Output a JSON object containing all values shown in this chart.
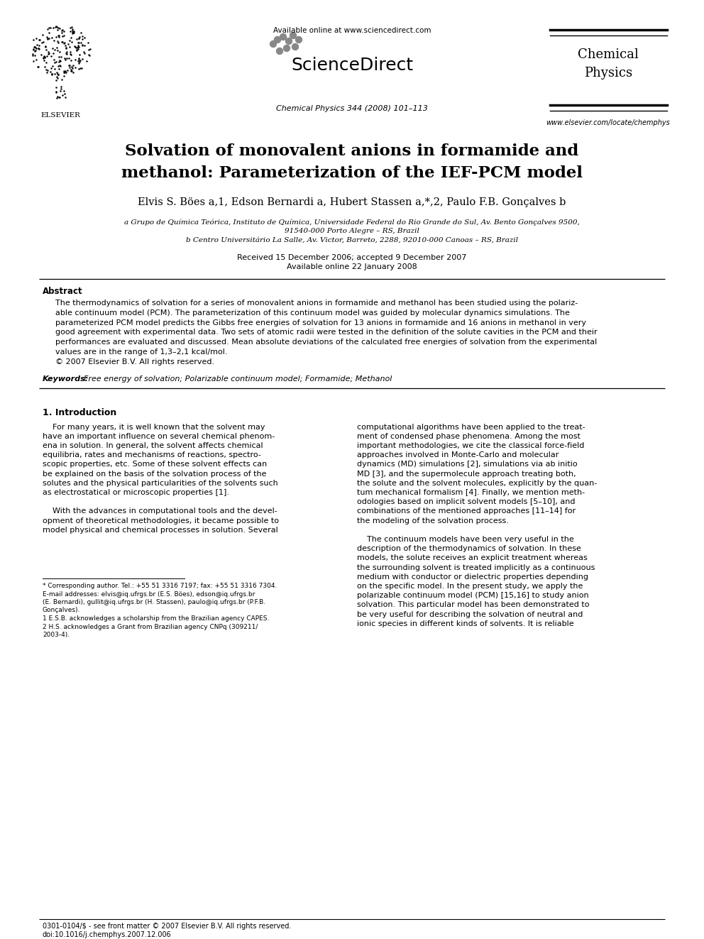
{
  "title_line1": "Solvation of monovalent anions in formamide and",
  "title_line2": "methanol: Parameterization of the IEF-PCM model",
  "authors": "Elvis S. Böes a,1, Edson Bernardi a, Hubert Stassen a,*,2, Paulo F.B. Gonçalves b",
  "affil_a": "a Grupo de Química Teórica, Instituto de Química, Universidade Federal do Rio Grande do Sul, Av. Bento Gonçalves 9500,",
  "affil_a2": "91540-000 Porto Alegre – RS, Brazil",
  "affil_b": "b Centro Universitário La Salle, Av. Victor, Barreto, 2288, 92010-000 Canoas – RS, Brazil",
  "received": "Received 15 December 2006; accepted 9 December 2007",
  "available": "Available online 22 January 2008",
  "journal_top": "Available online at www.sciencedirect.com",
  "journal_ref": "Chemical Physics 344 (2008) 101–113",
  "journal_url": "www.elsevier.com/locate/chemphys",
  "abstract_title": "Abstract",
  "abstract_lines": [
    "The thermodynamics of solvation for a series of monovalent anions in formamide and methanol has been studied using the polariz-",
    "able continuum model (PCM). The parameterization of this continuum model was guided by molecular dynamics simulations. The",
    "parameterized PCM model predicts the Gibbs free energies of solvation for 13 anions in formamide and 16 anions in methanol in very",
    "good agreement with experimental data. Two sets of atomic radii were tested in the definition of the solute cavities in the PCM and their",
    "performances are evaluated and discussed. Mean absolute deviations of the calculated free energies of solvation from the experimental",
    "values are in the range of 1,3–2,1 kcal/mol.",
    "© 2007 Elsevier B.V. All rights reserved."
  ],
  "keywords_label": "Keywords:",
  "keywords_text": "Free energy of solvation; Polarizable continuum model; Formamide; Methanol",
  "section1_title": "1. Introduction",
  "left_col_lines": [
    "    For many years, it is well known that the solvent may",
    "have an important influence on several chemical phenom-",
    "ena in solution. In general, the solvent affects chemical",
    "equilibria, rates and mechanisms of reactions, spectro-",
    "scopic properties, etc. Some of these solvent effects can",
    "be explained on the basis of the solvation process of the",
    "solutes and the physical particularities of the solvents such",
    "as electrostatical or microscopic properties [1].",
    "",
    "    With the advances in computational tools and the devel-",
    "opment of theoretical methodologies, it became possible to",
    "model physical and chemical processes in solution. Several"
  ],
  "right_col_lines": [
    "computational algorithms have been applied to the treat-",
    "ment of condensed phase phenomena. Among the most",
    "important methodologies, we cite the classical force-field",
    "approaches involved in Monte-Carlo and molecular",
    "dynamics (MD) simulations [2], simulations via ab initio",
    "MD [3], and the supermolecule approach treating both,",
    "the solute and the solvent molecules, explicitly by the quan-",
    "tum mechanical formalism [4]. Finally, we mention meth-",
    "odologies based on implicit solvent models [5–10], and",
    "combinations of the mentioned approaches [11–14] for",
    "the modeling of the solvation process.",
    "",
    "    The continuum models have been very useful in the",
    "description of the thermodynamics of solvation. In these",
    "models, the solute receives an explicit treatment whereas",
    "the surrounding solvent is treated implicitly as a continuous",
    "medium with conductor or dielectric properties depending",
    "on the specific model. In the present study, we apply the",
    "polarizable continuum model (PCM) [15,16] to study anion",
    "solvation. This particular model has been demonstrated to",
    "be very useful for describing the solvation of neutral and",
    "ionic species in different kinds of solvents. It is reliable"
  ],
  "fn_star": "* Corresponding author. Tel.: +55 51 3316 7197; fax: +55 51 3316 7304.",
  "fn_email1": "E-mail addresses: elvis@iq.ufrgs.br (E.S. Böes), edson@iq.ufrgs.br",
  "fn_email2": "(E. Bernardi), gullit@iq.ufrgs.br (H. Stassen), paulo@iq.ufrgs.br (P.F.B.",
  "fn_email3": "Gonçalves).",
  "fn_1": "1 E.S.B. acknowledges a scholarship from the Brazilian agency CAPES.",
  "fn_2": "2 H.S. acknowledges a Grant from Brazilian agency CNPq (309211/",
  "fn_2b": "2003-4).",
  "bottom1": "0301-0104/$ - see front matter © 2007 Elsevier B.V. All rights reserved.",
  "bottom2": "doi:10.1016/j.chemphys.2007.12.006",
  "bg": "#ffffff"
}
